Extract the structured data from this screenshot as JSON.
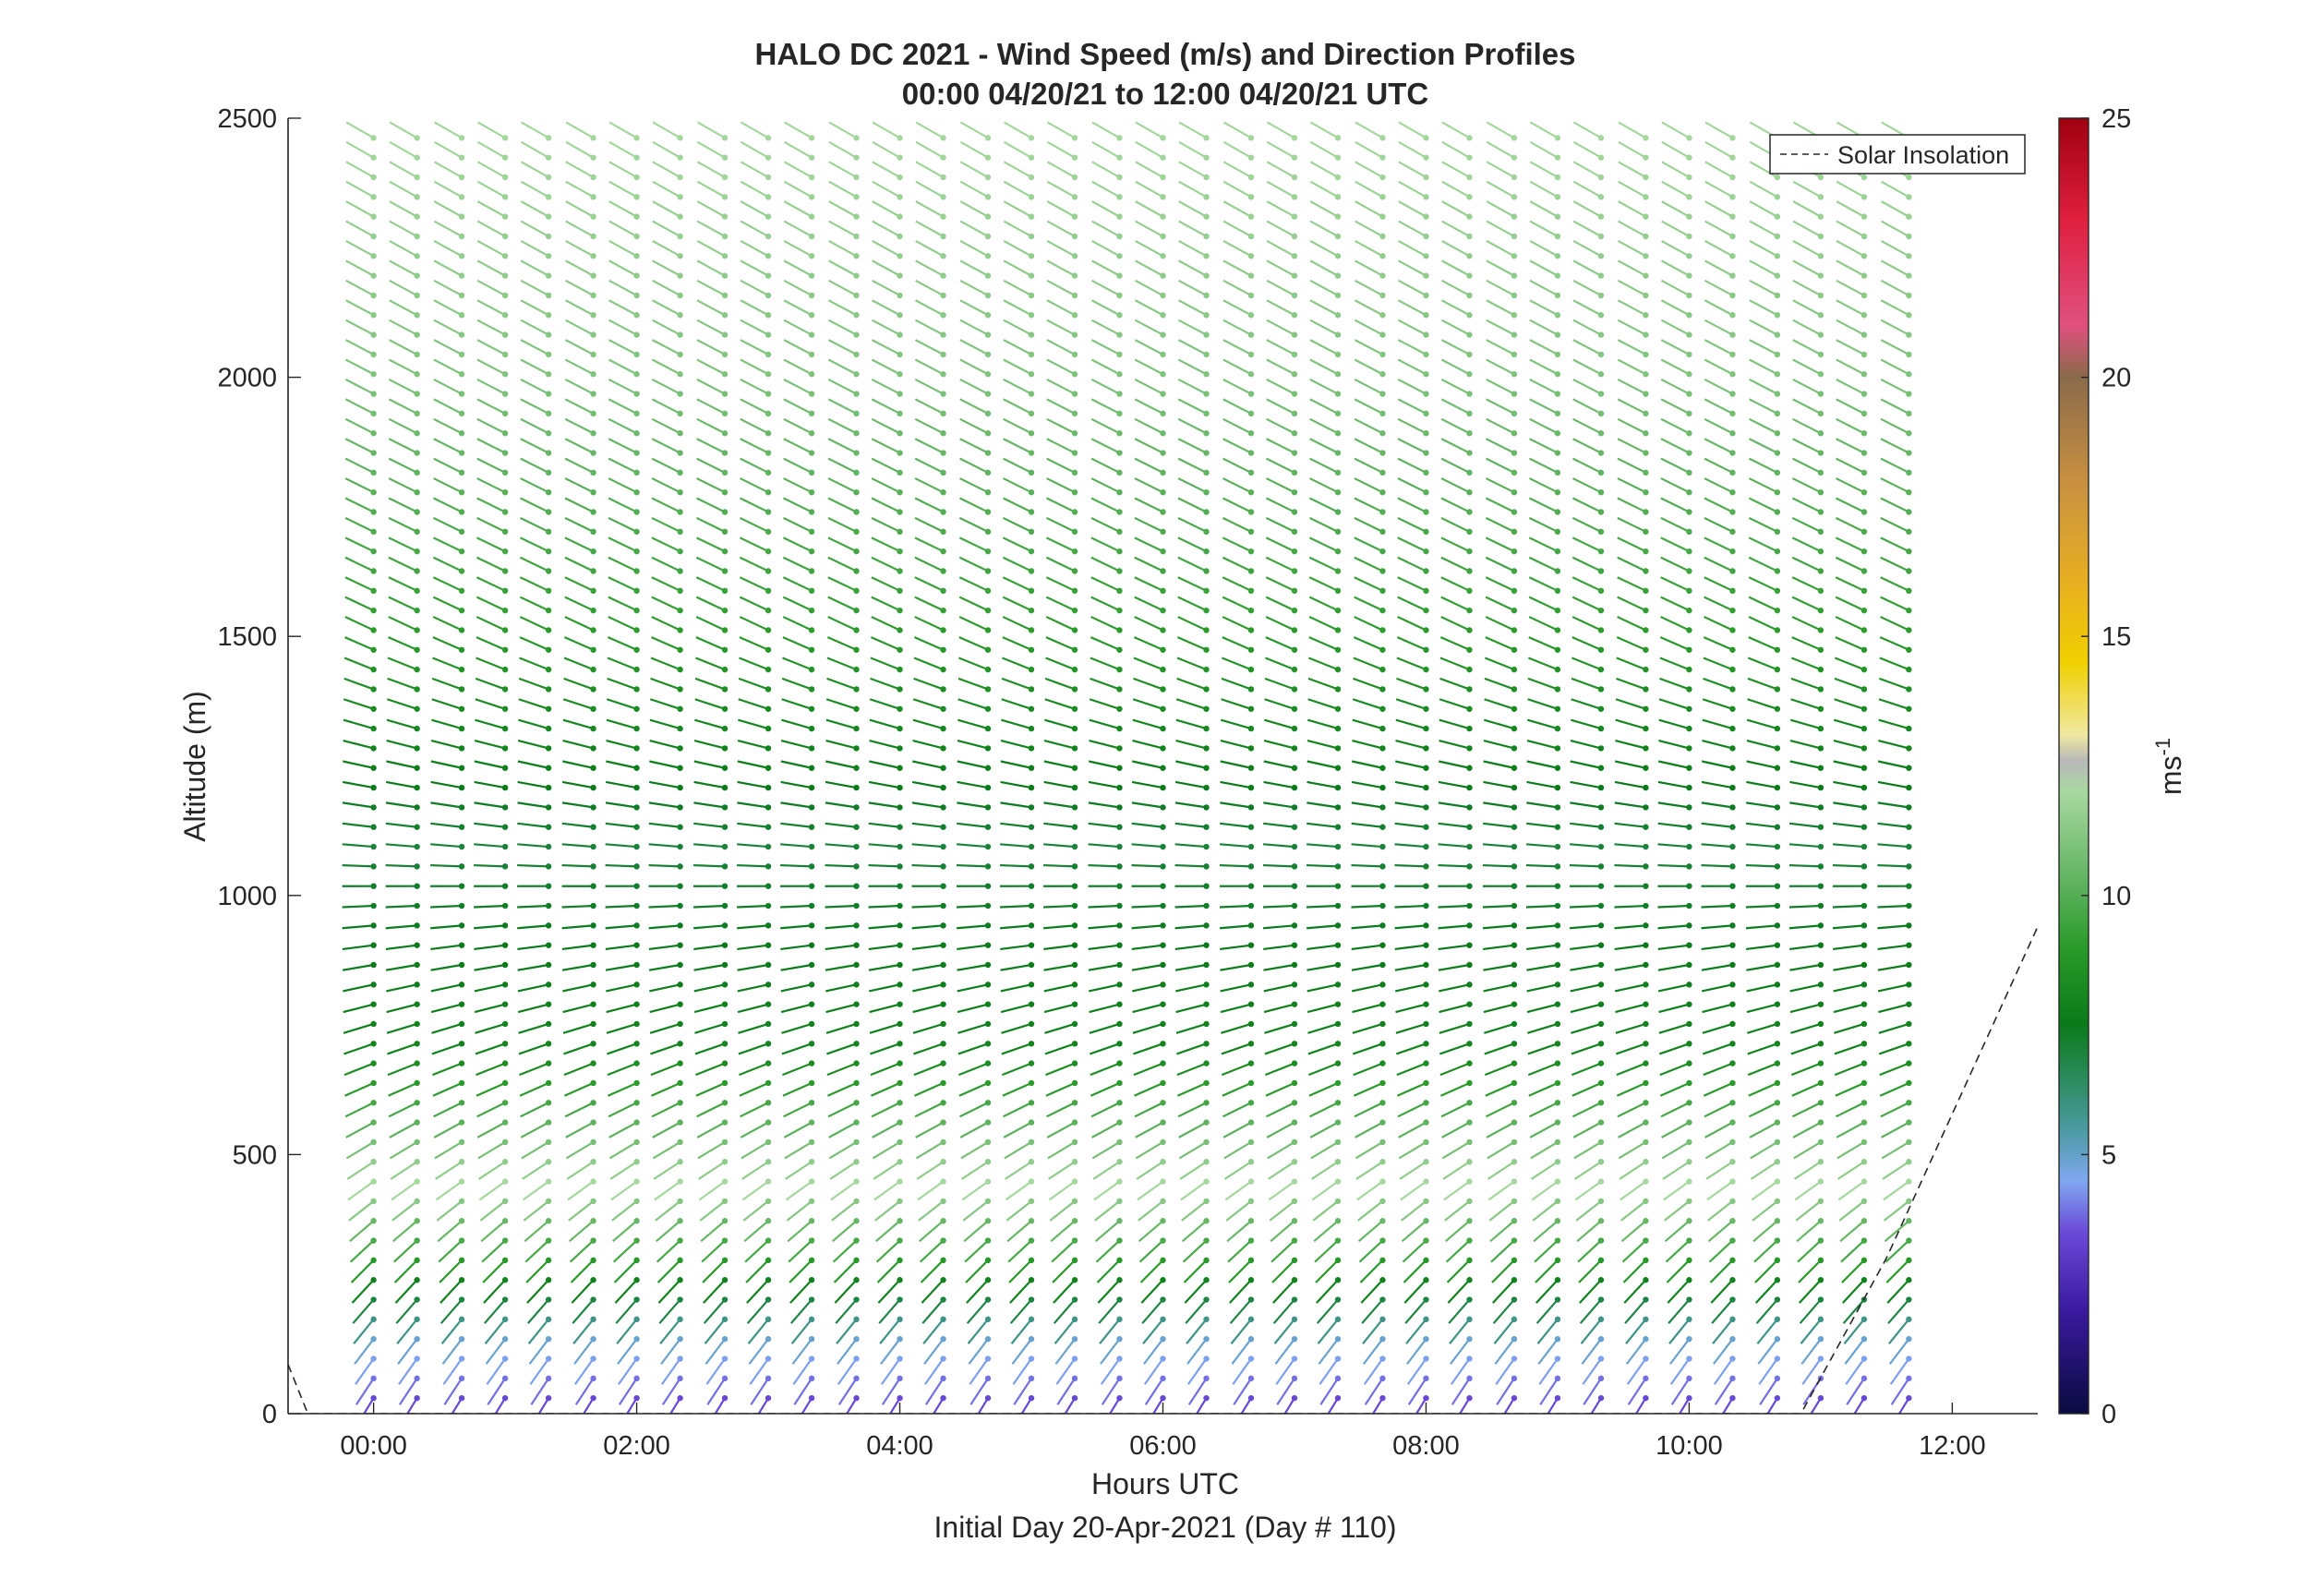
{
  "chart_data": {
    "type": "barb-profile",
    "title": "HALO DC 2021 - Wind Speed (m/s) and Direction Profiles",
    "subtitle": "00:00 04/20/21 to 12:00 04/20/21  UTC",
    "xlabel": "Hours UTC",
    "xlabel2": "Initial Day 20-Apr-2021 (Day # 110)",
    "ylabel": "Altitude (m)",
    "xlim": [
      -0.65,
      12.65
    ],
    "ylim": [
      0,
      2500
    ],
    "x_ticks": [
      0,
      2,
      4,
      6,
      8,
      10,
      12
    ],
    "x_tick_labels": [
      "00:00",
      "02:00",
      "04:00",
      "06:00",
      "08:00",
      "10:00",
      "12:00"
    ],
    "y_ticks": [
      0,
      500,
      1000,
      1500,
      2000,
      2500
    ],
    "y_tick_labels": [
      "0",
      "500",
      "1000",
      "1500",
      "2000",
      "2500"
    ],
    "legend": {
      "label": "Solar Insolation",
      "placement": "top-right",
      "style": "dashed",
      "color": "#262626"
    },
    "colorbar": {
      "label": "ms",
      "label_superscript": "-1",
      "range": [
        0,
        25
      ],
      "ticks": [
        0,
        5,
        10,
        15,
        20,
        25
      ],
      "tick_labels": [
        "0",
        "5",
        "10",
        "15",
        "20",
        "25"
      ],
      "stops": [
        {
          "v": 0,
          "c": "#0a0a40"
        },
        {
          "v": 2,
          "c": "#3a1aa0"
        },
        {
          "v": 3.5,
          "c": "#6a4ad8"
        },
        {
          "v": 4.5,
          "c": "#7fa8f0"
        },
        {
          "v": 5.5,
          "c": "#4a9aa0"
        },
        {
          "v": 6.5,
          "c": "#2a8a5a"
        },
        {
          "v": 7.5,
          "c": "#0a7a1a"
        },
        {
          "v": 9,
          "c": "#2a9a2a"
        },
        {
          "v": 10.5,
          "c": "#6ab86a"
        },
        {
          "v": 12,
          "c": "#a8d8a0"
        },
        {
          "v": 12.6,
          "c": "#b8b8b8"
        },
        {
          "v": 13.1,
          "c": "#f0e8a0"
        },
        {
          "v": 14.5,
          "c": "#f0d000"
        },
        {
          "v": 16,
          "c": "#e8b020"
        },
        {
          "v": 18,
          "c": "#c89040"
        },
        {
          "v": 20,
          "c": "#8a6a4a"
        },
        {
          "v": 21,
          "c": "#e05080"
        },
        {
          "v": 23,
          "c": "#e02040"
        },
        {
          "v": 25,
          "c": "#a00010"
        }
      ]
    },
    "solar_insolation": {
      "x": [
        -0.65,
        -0.5,
        10.85,
        11.5,
        12.65
      ],
      "y": [
        95,
        0,
        0,
        300,
        940
      ]
    },
    "barbs": {
      "times": [
        0.0,
        0.33,
        0.67,
        1.0,
        1.33,
        1.67,
        2.0,
        2.33,
        2.67,
        3.0,
        3.33,
        3.67,
        4.0,
        4.33,
        4.67,
        5.0,
        5.33,
        5.67,
        6.0,
        6.33,
        6.67,
        7.0,
        7.33,
        7.67,
        8.0,
        8.33,
        8.67,
        9.0,
        9.33,
        9.67,
        10.0,
        10.33,
        10.67,
        11.0,
        11.33,
        11.67
      ],
      "first_altitude": 30,
      "altitude_step": 38,
      "last_altitude": 2470,
      "direction_deg": {
        "profile": [
          {
            "alt": 0,
            "dir": 210
          },
          {
            "alt": 300,
            "dir": 225
          },
          {
            "alt": 700,
            "dir": 250
          },
          {
            "alt": 1100,
            "dir": 275
          },
          {
            "alt": 1500,
            "dir": 295
          },
          {
            "alt": 2500,
            "dir": 300
          }
        ]
      },
      "speed_ms": {
        "profile": [
          {
            "alt": 0,
            "spd": 3
          },
          {
            "alt": 150,
            "spd": 5
          },
          {
            "alt": 300,
            "spd": 9
          },
          {
            "alt": 450,
            "spd": 12
          },
          {
            "alt": 700,
            "spd": 8
          },
          {
            "alt": 1100,
            "spd": 7
          },
          {
            "alt": 1500,
            "spd": 9
          },
          {
            "alt": 2000,
            "spd": 11
          },
          {
            "alt": 2500,
            "spd": 12
          }
        ]
      }
    }
  }
}
